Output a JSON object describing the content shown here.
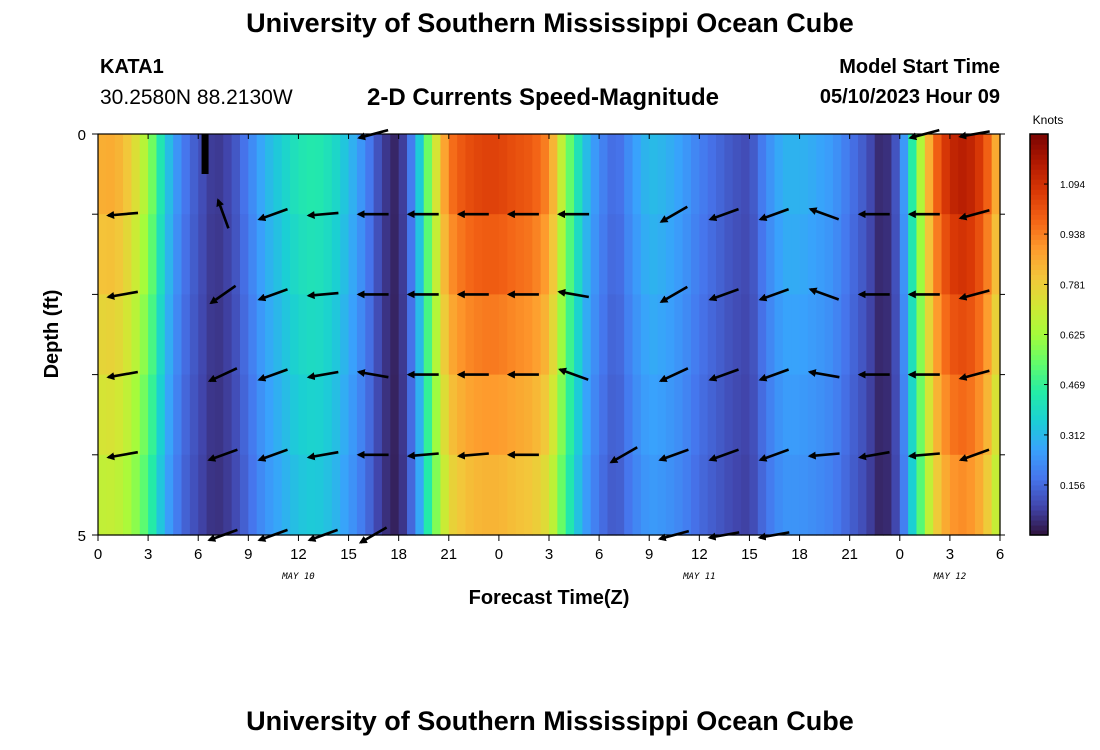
{
  "header": {
    "title": "University of Southern Mississippi Ocean Cube",
    "station": "KATA1",
    "coords": "30.2580N  88.2130W",
    "subtitle": "2-D Currents Speed-Magnitude",
    "model_label": "Model Start Time",
    "model_time": "05/10/2023 Hour 09"
  },
  "footer": {
    "title": "University of Southern Mississippi Ocean Cube"
  },
  "chart_data": {
    "type": "heatmap",
    "title": "2-D Currents Speed-Magnitude",
    "xlabel": "Forecast Time(Z)",
    "ylabel": "Depth (ft)",
    "x_ticks": [
      "0",
      "3",
      "6",
      "9",
      "12",
      "15",
      "18",
      "21",
      "0",
      "3",
      "6",
      "9",
      "12",
      "15",
      "18",
      "21",
      "0",
      "3",
      "6"
    ],
    "x_range_hours": [
      0,
      54
    ],
    "date_labels": [
      {
        "text": "MAY 10",
        "hour": 12
      },
      {
        "text": "MAY 11",
        "hour": 36
      },
      {
        "text": "MAY 12",
        "hour": 51
      }
    ],
    "y_ticks": [
      "0",
      "5"
    ],
    "ylim": [
      0,
      5
    ],
    "depth_rows": 5,
    "colorbar": {
      "label": "Knots",
      "min": 0.0,
      "max": 1.25,
      "ticks": [
        "1.094",
        "0.938",
        "0.781",
        "0.625",
        "0.469",
        "0.312",
        "0.156"
      ],
      "tick_values": [
        1.094,
        0.938,
        0.781,
        0.625,
        0.469,
        0.312,
        0.156
      ],
      "colors": [
        "#30123b",
        "#4145ab",
        "#4675ed",
        "#39a2fc",
        "#1bcfd4",
        "#24eca6",
        "#61fc6c",
        "#a4fc3b",
        "#d1e834",
        "#f3c63a",
        "#fe9b2d",
        "#f36315",
        "#d93806",
        "#b11901",
        "#7a0402"
      ]
    },
    "speed_profile": {
      "hours": [
        0,
        1,
        2,
        3,
        4,
        5,
        6,
        7,
        8,
        9,
        10,
        11,
        12,
        13,
        14,
        15,
        16,
        17,
        18,
        19,
        20,
        21,
        22,
        23,
        24,
        25,
        26,
        27,
        28,
        29,
        30,
        31,
        32,
        33,
        34,
        35,
        36,
        37,
        38,
        39,
        40,
        41,
        42,
        43,
        44,
        45,
        46,
        47,
        48,
        49,
        50,
        51,
        52,
        53,
        54
      ],
      "knots": [
        0.85,
        0.86,
        0.78,
        0.62,
        0.36,
        0.2,
        0.12,
        0.06,
        0.1,
        0.2,
        0.3,
        0.36,
        0.42,
        0.44,
        0.4,
        0.32,
        0.22,
        0.08,
        0.02,
        0.25,
        0.65,
        0.95,
        1.02,
        1.05,
        1.05,
        1.02,
        1.0,
        0.92,
        0.6,
        0.35,
        0.22,
        0.15,
        0.25,
        0.32,
        0.3,
        0.26,
        0.2,
        0.16,
        0.12,
        0.1,
        0.22,
        0.3,
        0.3,
        0.28,
        0.25,
        0.18,
        0.12,
        0.02,
        0.15,
        0.55,
        0.95,
        1.12,
        1.15,
        1.05,
        0.8
      ]
    },
    "depth_factor": [
      1.0,
      0.95,
      0.9,
      0.85,
      0.8,
      0.62
    ],
    "vector_hours": [
      1.5,
      4.5,
      7.5,
      10.5,
      13.5,
      16.5,
      19.5,
      22.5,
      25.5,
      28.5,
      31.5,
      34.5,
      37.5,
      40.5,
      43.5,
      46.5,
      49.5,
      52.5
    ],
    "vector_depths": [
      0,
      1,
      2,
      3,
      4,
      5
    ],
    "vectors_deg": [
      [
        null,
        null,
        null,
        null,
        null,
        195,
        null,
        null,
        null,
        null,
        null,
        null,
        null,
        null,
        null,
        null,
        195,
        190
      ],
      [
        185,
        null,
        110,
        200,
        185,
        180,
        180,
        180,
        180,
        180,
        null,
        210,
        200,
        200,
        160,
        180,
        180,
        195
      ],
      [
        190,
        null,
        215,
        200,
        185,
        180,
        180,
        180,
        180,
        170,
        null,
        210,
        200,
        200,
        160,
        180,
        180,
        195
      ],
      [
        190,
        null,
        205,
        200,
        190,
        170,
        180,
        180,
        180,
        160,
        null,
        205,
        200,
        200,
        170,
        180,
        180,
        195
      ],
      [
        190,
        null,
        200,
        200,
        190,
        180,
        185,
        185,
        180,
        null,
        210,
        200,
        200,
        200,
        185,
        190,
        185,
        200
      ],
      [
        null,
        null,
        200,
        200,
        200,
        210,
        null,
        null,
        null,
        null,
        null,
        195,
        190,
        190,
        null,
        null,
        null,
        null
      ]
    ],
    "vector_length": 30
  }
}
